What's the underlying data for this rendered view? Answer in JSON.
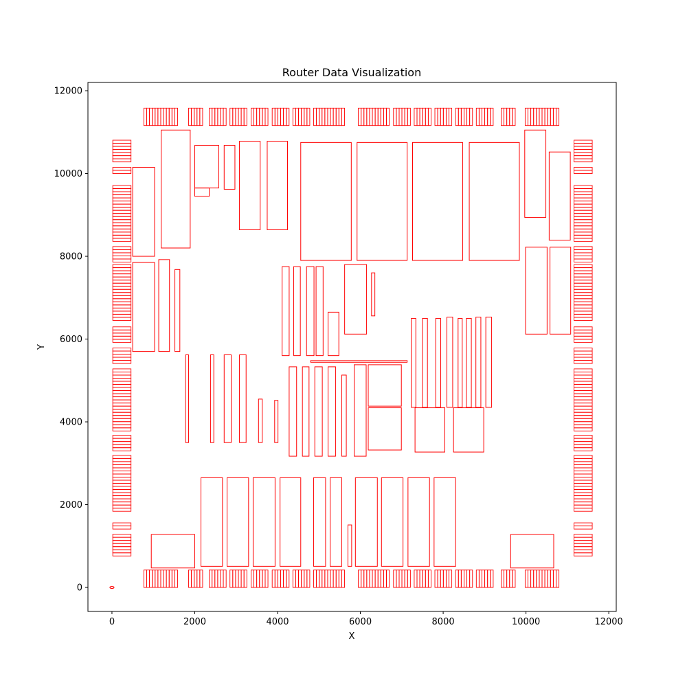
{
  "chart_data": {
    "type": "scatter",
    "title": "Router Data Visualization",
    "xlabel": "X",
    "ylabel": "Y",
    "xlim": [
      -580,
      12180
    ],
    "ylim": [
      -580,
      12200
    ],
    "xticks": [
      0,
      2000,
      4000,
      6000,
      8000,
      10000,
      12000
    ],
    "yticks": [
      0,
      2000,
      4000,
      6000,
      8000,
      10000,
      12000
    ],
    "xtick_labels": [
      "0",
      "2000",
      "4000",
      "6000",
      "8000",
      "10000",
      "12000"
    ],
    "ytick_labels": [
      "0",
      "2000",
      "4000",
      "6000",
      "8000",
      "10000",
      "12000"
    ],
    "grid": false,
    "color": "#ff0000",
    "marker": {
      "x": 0,
      "y": 0
    },
    "pads": {
      "bottom_y": [
        0,
        420
      ],
      "top_y": [
        11160,
        11580
      ],
      "top_bottom_groups": [
        [
          770,
          1620
        ],
        [
          1850,
          2210
        ],
        [
          2350,
          2790
        ],
        [
          2850,
          3300
        ],
        [
          3360,
          3800
        ],
        [
          3870,
          4310
        ],
        [
          4370,
          4810
        ],
        [
          4870,
          5660
        ],
        [
          5950,
          6750
        ],
        [
          6800,
          7240
        ],
        [
          7300,
          7740
        ],
        [
          7800,
          8240
        ],
        [
          8300,
          8740
        ],
        [
          8800,
          9240
        ],
        [
          9400,
          9790
        ],
        [
          9980,
          10840
        ]
      ],
      "pad_width": 68,
      "left_x": [
        20,
        460
      ],
      "right_x": [
        11160,
        11600
      ],
      "side_groups": [
        [
          760,
          1310
        ],
        [
          1410,
          1610
        ],
        [
          1840,
          3250
        ],
        [
          3300,
          3690
        ],
        [
          3780,
          5310
        ],
        [
          5410,
          5810
        ],
        [
          5920,
          6350
        ],
        [
          6450,
          7800
        ],
        [
          7860,
          8290
        ],
        [
          8360,
          9780
        ],
        [
          10000,
          10180
        ],
        [
          10280,
          10860
        ]
      ],
      "pad_height": 75
    },
    "blocks": [
      [
        500,
        5700,
        1030,
        7850
      ],
      [
        1130,
        5700,
        1390,
        7920
      ],
      [
        1520,
        5700,
        1640,
        7680
      ],
      [
        500,
        8000,
        1030,
        10150
      ],
      [
        1190,
        8200,
        1890,
        11050
      ],
      [
        2000,
        9650,
        2580,
        10680
      ],
      [
        2000,
        9450,
        2350,
        9650
      ],
      [
        2710,
        9620,
        2970,
        10680
      ],
      [
        3080,
        8640,
        3580,
        10780
      ],
      [
        3750,
        8640,
        4240,
        10780
      ],
      [
        4560,
        7900,
        5780,
        10750
      ],
      [
        5920,
        7900,
        7130,
        10750
      ],
      [
        7260,
        7900,
        8470,
        10750
      ],
      [
        8630,
        7900,
        9840,
        10750
      ],
      [
        9970,
        8940,
        10480,
        11050
      ],
      [
        10560,
        8390,
        11070,
        10520
      ],
      [
        9990,
        6120,
        10510,
        8220
      ],
      [
        10580,
        6120,
        11080,
        8220
      ],
      [
        4110,
        5600,
        4280,
        7750
      ],
      [
        4390,
        5600,
        4550,
        7750
      ],
      [
        4700,
        5600,
        4880,
        7750
      ],
      [
        4930,
        5600,
        5100,
        7750
      ],
      [
        5220,
        5600,
        5480,
        6650
      ],
      [
        5620,
        6120,
        6150,
        7800
      ],
      [
        6270,
        6560,
        6350,
        7600
      ],
      [
        4800,
        5440,
        7130,
        5480
      ],
      [
        1780,
        3500,
        1850,
        5620
      ],
      [
        2380,
        3500,
        2460,
        5620
      ],
      [
        2710,
        3500,
        2880,
        5620
      ],
      [
        3080,
        3500,
        3240,
        5620
      ],
      [
        3540,
        3500,
        3630,
        4550
      ],
      [
        3930,
        3500,
        4010,
        4520
      ],
      [
        4280,
        3170,
        4460,
        5330
      ],
      [
        4600,
        3170,
        4760,
        5330
      ],
      [
        4900,
        3170,
        5080,
        5330
      ],
      [
        5220,
        3170,
        5400,
        5330
      ],
      [
        5550,
        3170,
        5660,
        5130
      ],
      [
        5850,
        3170,
        6140,
        5380
      ],
      [
        6190,
        4380,
        6990,
        5380
      ],
      [
        6190,
        3320,
        6990,
        4340
      ],
      [
        7230,
        4350,
        7340,
        6500
      ],
      [
        7500,
        4350,
        7620,
        6500
      ],
      [
        7820,
        4350,
        7940,
        6500
      ],
      [
        8090,
        4350,
        8230,
        6530
      ],
      [
        8360,
        4350,
        8460,
        6500
      ],
      [
        8560,
        4350,
        8680,
        6500
      ],
      [
        8790,
        4350,
        8910,
        6530
      ],
      [
        9030,
        4350,
        9170,
        6530
      ],
      [
        7320,
        3270,
        8040,
        4340
      ],
      [
        8250,
        3270,
        8980,
        4340
      ],
      [
        950,
        470,
        2000,
        1280
      ],
      [
        9630,
        470,
        10670,
        1280
      ],
      [
        2150,
        510,
        2670,
        2650
      ],
      [
        2780,
        510,
        3300,
        2650
      ],
      [
        3410,
        510,
        3940,
        2650
      ],
      [
        4060,
        510,
        4560,
        2650
      ],
      [
        4870,
        510,
        5160,
        2650
      ],
      [
        5270,
        510,
        5550,
        2650
      ],
      [
        5700,
        510,
        5790,
        1510
      ],
      [
        5880,
        510,
        6410,
        2650
      ],
      [
        6510,
        510,
        7030,
        2650
      ],
      [
        7150,
        510,
        7670,
        2650
      ],
      [
        7780,
        510,
        8300,
        2650
      ]
    ]
  }
}
